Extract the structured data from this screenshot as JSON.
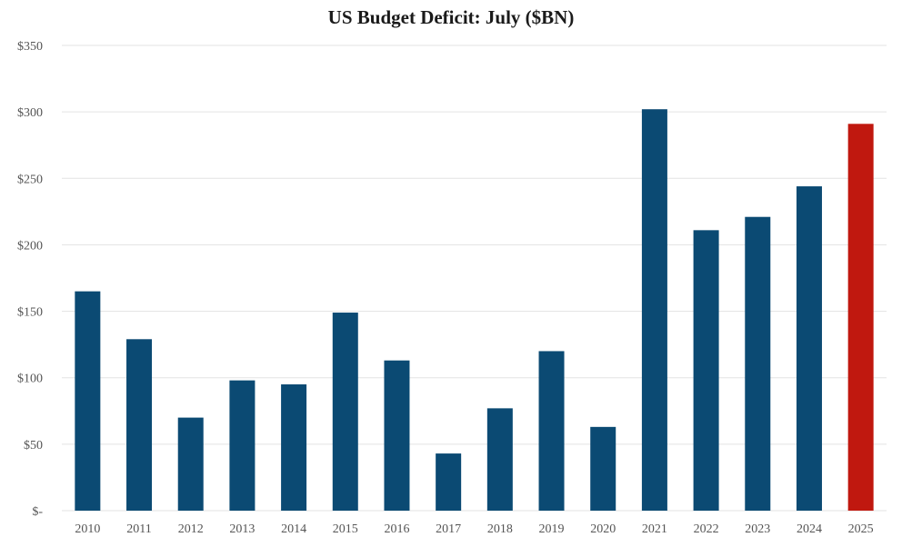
{
  "chart_data": {
    "type": "bar",
    "title": "US Budget Deficit: July ($BN)",
    "xlabel": "",
    "ylabel": "",
    "categories": [
      "2010",
      "2011",
      "2012",
      "2013",
      "2014",
      "2015",
      "2016",
      "2017",
      "2018",
      "2019",
      "2020",
      "2021",
      "2022",
      "2023",
      "2024",
      "2025"
    ],
    "values": [
      165,
      129,
      70,
      98,
      95,
      149,
      113,
      43,
      77,
      120,
      63,
      302,
      211,
      221,
      244,
      291
    ],
    "ylim": [
      0,
      350
    ],
    "yticks": [
      0,
      50,
      100,
      150,
      200,
      250,
      300,
      350
    ],
    "ytick_labels": [
      "$-",
      "$50",
      "$100",
      "$150",
      "$200",
      "$250",
      "$300",
      "$350"
    ],
    "grid": true,
    "legend": "none",
    "colors": {
      "default": "#0b4a73",
      "highlight": "#c0180f",
      "grid": "#e3e3e3"
    },
    "highlight_category": "2025"
  }
}
